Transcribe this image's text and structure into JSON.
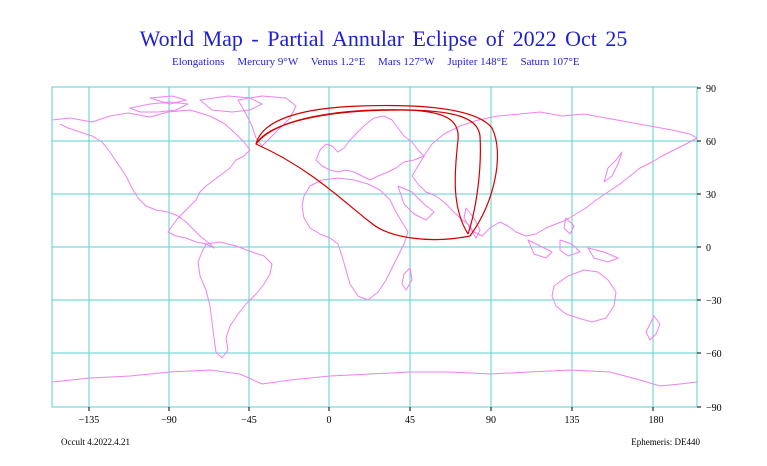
{
  "title": "World Map  -  Partial Annular Eclipse of 2022 Oct 25",
  "elongations": {
    "label": "Elongations",
    "mercury": "Mercury 9°W",
    "venus": "Venus 1.2°E",
    "mars": "Mars 127°W",
    "jupiter": "Jupiter 148°E",
    "saturn": "Saturn 107°E"
  },
  "axis": {
    "longitude_ticks": [
      "−135",
      "−90",
      "−45",
      "0",
      "45",
      "90",
      "135",
      "180"
    ],
    "latitude_ticks": [
      "90",
      "60",
      "30",
      "0",
      "−30",
      "−60",
      "−90"
    ]
  },
  "footer": {
    "version": "Occult 4.2022.4.21",
    "ephemeris": "Ephemeris: DE440"
  },
  "colors": {
    "grid": "#58d2d2",
    "coastline": "#ee82ee",
    "eclipse_path": "#d40000",
    "title": "#1f1fd6"
  }
}
